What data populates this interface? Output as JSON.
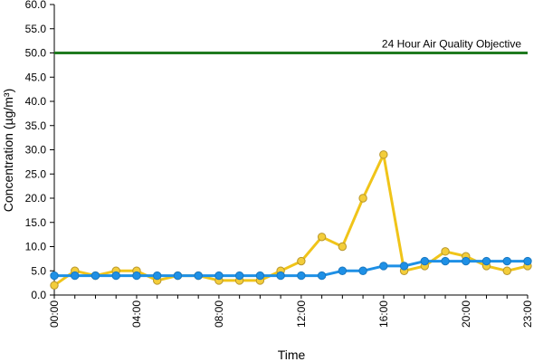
{
  "chart_data": {
    "type": "line",
    "xlabel": "Time",
    "ylabel": "Concentration (µg/m³)",
    "ylim": [
      0,
      60
    ],
    "y_ticks": [
      "0.0",
      "5.0",
      "10.0",
      "15.0",
      "20.0",
      "25.0",
      "30.0",
      "35.0",
      "40.0",
      "45.0",
      "50.0",
      "55.0",
      "60.0"
    ],
    "x": [
      0,
      1,
      2,
      3,
      4,
      5,
      6,
      7,
      8,
      9,
      10,
      11,
      12,
      13,
      14,
      15,
      16,
      17,
      18,
      19,
      20,
      21,
      22,
      23
    ],
    "x_tick_labels": [
      "00:00",
      "04:00",
      "08:00",
      "12:00",
      "16:00",
      "20:00",
      "23:00"
    ],
    "x_tick_positions": [
      0,
      4,
      8,
      12,
      16,
      20,
      23
    ],
    "grid": false,
    "series": [
      {
        "color": "#f0c419",
        "marker_fill": "#f3cd3a",
        "marker_stroke": "#b8962a",
        "values": [
          2,
          5,
          4,
          5,
          5,
          3,
          4,
          4,
          3,
          3,
          3,
          5,
          7,
          12,
          10,
          20,
          29,
          5,
          6,
          9,
          8,
          6,
          5,
          6
        ]
      },
      {
        "color": "#1e90e6",
        "marker_fill": "#1e90e6",
        "marker_stroke": "#1a78c0",
        "values": [
          4,
          4,
          4,
          4,
          4,
          4,
          4,
          4,
          4,
          4,
          4,
          4,
          4,
          4,
          5,
          5,
          6,
          6,
          7,
          7,
          7,
          7,
          7,
          7
        ]
      }
    ],
    "reference_line": {
      "value": 50,
      "label": "24 Hour Air Quality Objective",
      "color": "#1f7a1f"
    }
  }
}
